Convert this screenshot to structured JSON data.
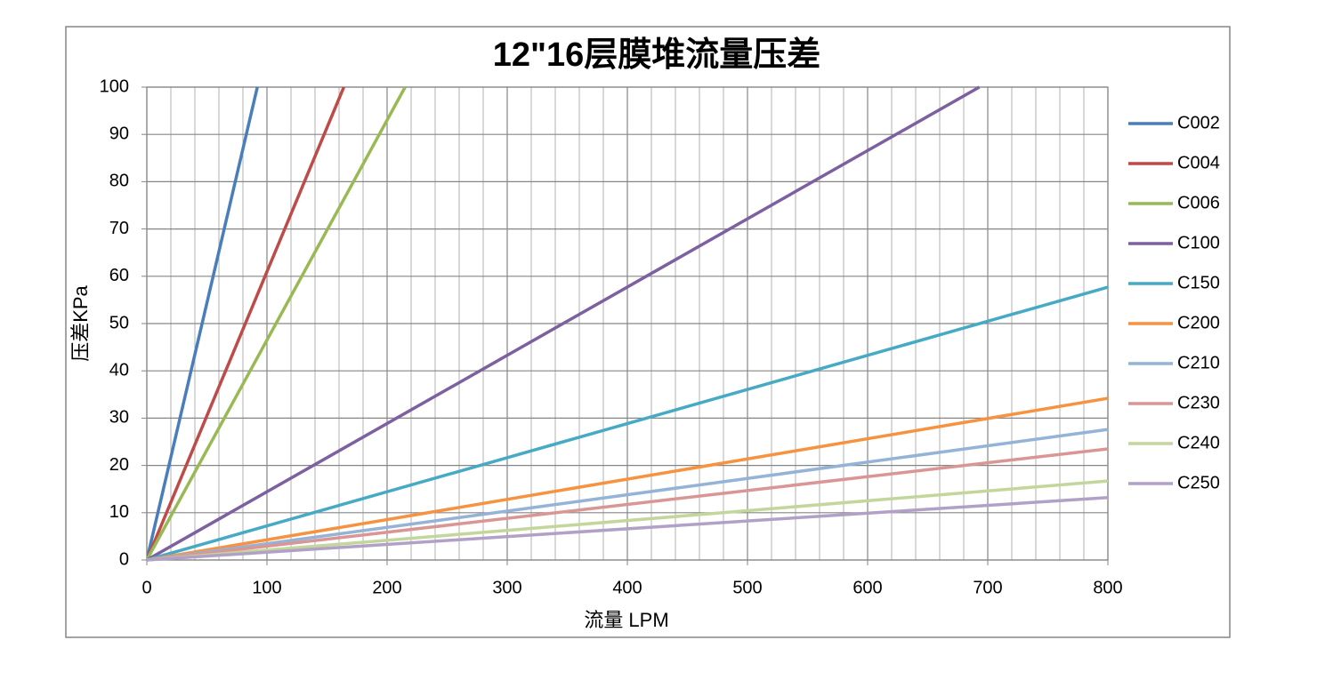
{
  "chart_data": {
    "type": "line",
    "title": "12\"16层膜堆流量压差",
    "xlabel": "流量 LPM",
    "ylabel": "压差KPa",
    "xlim": [
      0,
      800
    ],
    "ylim": [
      0,
      100
    ],
    "xticks": [
      0,
      100,
      200,
      300,
      400,
      500,
      600,
      700,
      800
    ],
    "xminorticks": [
      20,
      40,
      60,
      80,
      120,
      140,
      160,
      180,
      220,
      240,
      260,
      280,
      320,
      340,
      360,
      380,
      420,
      440,
      460,
      480,
      520,
      540,
      560,
      580,
      620,
      640,
      660,
      680,
      720,
      740,
      760,
      780
    ],
    "yticks": [
      0,
      10,
      20,
      30,
      40,
      50,
      60,
      70,
      80,
      90,
      100
    ],
    "grid": true,
    "legend": "right",
    "series": [
      {
        "name": "C002",
        "color": "#4a7ebb",
        "x": [
          0,
          92
        ],
        "values": [
          0,
          100
        ]
      },
      {
        "name": "C004",
        "color": "#be4b48",
        "x": [
          0,
          164
        ],
        "values": [
          0,
          100
        ]
      },
      {
        "name": "C006",
        "color": "#98b954",
        "x": [
          0,
          215
        ],
        "values": [
          0,
          100
        ]
      },
      {
        "name": "C100",
        "color": "#7d60a0",
        "x": [
          0,
          693
        ],
        "values": [
          0,
          100
        ]
      },
      {
        "name": "C150",
        "color": "#46aac5",
        "x": [
          0,
          800
        ],
        "values": [
          0,
          57.7
        ]
      },
      {
        "name": "C200",
        "color": "#f69240",
        "x": [
          0,
          800
        ],
        "values": [
          0,
          34.2
        ]
      },
      {
        "name": "C210",
        "color": "#94b3d6",
        "x": [
          0,
          800
        ],
        "values": [
          0,
          27.6
        ]
      },
      {
        "name": "C230",
        "color": "#d99694",
        "x": [
          0,
          800
        ],
        "values": [
          0,
          23.5
        ]
      },
      {
        "name": "C240",
        "color": "#c3d69b",
        "x": [
          0,
          800
        ],
        "values": [
          0,
          16.7
        ]
      },
      {
        "name": "C250",
        "color": "#b2a1c7",
        "x": [
          0,
          800
        ],
        "values": [
          0,
          13.2
        ]
      }
    ]
  }
}
